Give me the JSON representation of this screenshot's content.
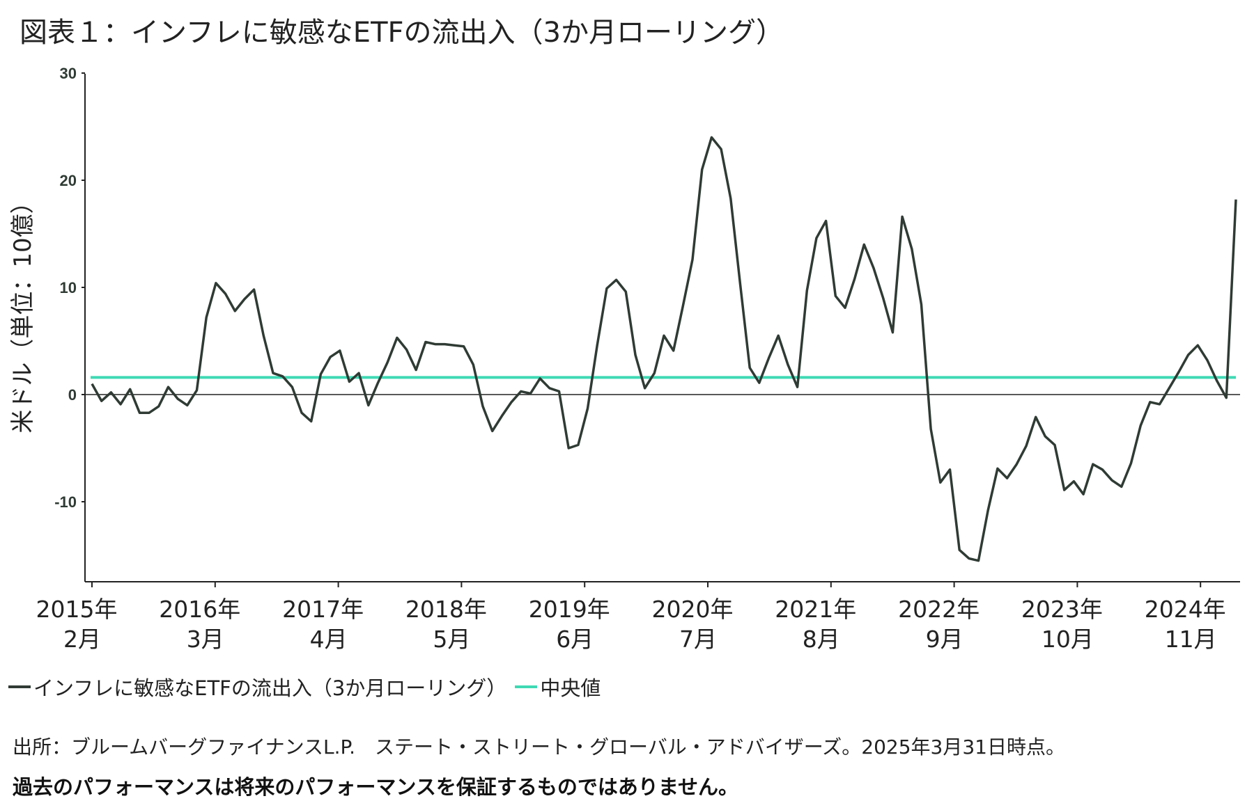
{
  "title": "図表１：インフレに敏感なETFの流出入（3か月ローリング）",
  "colors": {
    "series": "#2f3b34",
    "median": "#3fd9b4",
    "axis": "#222222",
    "background": "#ffffff"
  },
  "legend": {
    "series_label": "インフレに敏感なETFの流出入（3か月ローリング）",
    "median_label": "中央値"
  },
  "source": "出所：ブルームバーグファイナンスL.P.　ステート・ストリート・グローバル・アドバイザーズ。2025年3月31日時点。",
  "disclaimer": "過去のパフォーマンスは将来のパフォーマンスを保証するものではありません。",
  "chart_data": {
    "type": "line",
    "title": "インフレに敏感なETFの流出入（3か月ローリング）",
    "xlabel": "",
    "ylabel": "米ドル（単位：10億）",
    "ylim": [
      -17,
      30
    ],
    "yticks": [
      30,
      20,
      10,
      0,
      -10
    ],
    "xtick_labels": [
      [
        "2015年",
        "2月"
      ],
      [
        "2016年",
        "3月"
      ],
      [
        "2017年",
        "4月"
      ],
      [
        "2018年",
        "5月"
      ],
      [
        "2019年",
        "6月"
      ],
      [
        "2020年",
        "7月"
      ],
      [
        "2021年",
        "8月"
      ],
      [
        "2022年",
        "9月"
      ],
      [
        "2023年",
        "10月"
      ],
      [
        "2024年",
        "11月"
      ]
    ],
    "median": 1.6,
    "series": [
      {
        "name": "インフレに敏感なETFの流出入（3か月ローリング）",
        "values": [
          1.0,
          -0.6,
          0.2,
          -0.9,
          0.5,
          -1.7,
          -1.7,
          -1.1,
          0.7,
          -0.4,
          -1.0,
          0.4,
          7.2,
          10.4,
          9.4,
          7.8,
          8.9,
          9.8,
          5.5,
          2.0,
          1.7,
          0.7,
          -1.7,
          -2.5,
          1.9,
          3.5,
          4.1,
          1.2,
          2.0,
          -1.0,
          1.1,
          3.0,
          5.3,
          4.2,
          2.3,
          4.9,
          4.7,
          4.7,
          4.6,
          4.5,
          2.8,
          -1.1,
          -3.4,
          -2.0,
          -0.7,
          0.3,
          0.1,
          1.5,
          0.6,
          0.3,
          -5.0,
          -4.7,
          -1.3,
          4.6,
          9.9,
          10.7,
          9.6,
          3.7,
          0.6,
          2.0,
          5.5,
          4.1,
          8.3,
          12.6,
          21.0,
          24.0,
          22.9,
          18.3,
          10.3,
          2.5,
          1.1,
          3.4,
          5.5,
          2.8,
          0.7,
          9.7,
          14.6,
          16.2,
          9.2,
          8.1,
          10.8,
          14.0,
          11.8,
          9.0,
          5.8,
          16.6,
          13.6,
          8.4,
          -3.2,
          -8.2,
          -7.0,
          -14.5,
          -15.3,
          -15.5,
          -10.8,
          -6.9,
          -7.8,
          -6.5,
          -4.8,
          -2.1,
          -3.9,
          -4.7,
          -8.9,
          -8.1,
          -9.3,
          -6.5,
          -7.0,
          -8.0,
          -8.6,
          -6.4,
          -2.9,
          -0.7,
          -0.9,
          0.6,
          2.1,
          3.7,
          4.6,
          3.2,
          1.3,
          -0.3,
          18.2
        ]
      }
    ]
  }
}
